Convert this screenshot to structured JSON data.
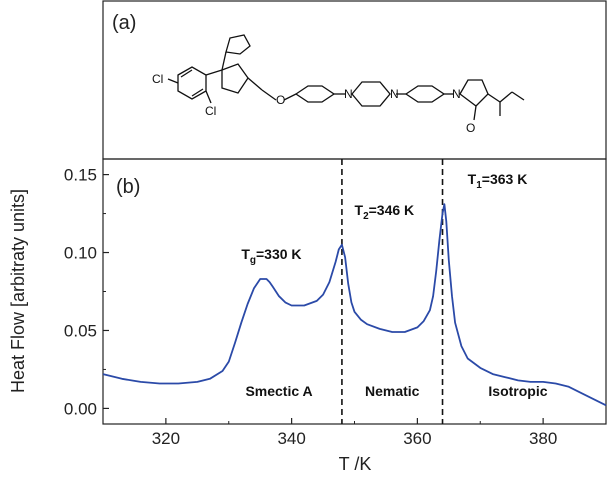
{
  "panel_a": {
    "label": "(a)",
    "atoms": {
      "cl1": "Cl",
      "cl2": "Cl",
      "n": "N",
      "o": "O"
    }
  },
  "chart_data": {
    "type": "line",
    "panel_label": "(b)",
    "xlabel": "T /K",
    "ylabel": "Heat Flow [arbitraty units]",
    "xlim": [
      310,
      390
    ],
    "ylim": [
      -0.01,
      0.16
    ],
    "xticks": [
      320,
      340,
      360,
      380
    ],
    "xtick_labels": [
      "320",
      "340",
      "360",
      "380"
    ],
    "yticks": [
      0.0,
      0.05,
      0.1,
      0.15
    ],
    "ytick_labels": [
      "0.00",
      "0.05",
      "0.10",
      "0.15"
    ],
    "grid": false,
    "series": [
      {
        "color": "#2b4aa8",
        "x": [
          310,
          313,
          316,
          319,
          322,
          325,
          327,
          329,
          330,
          331,
          332,
          333,
          334,
          335,
          336,
          336.5,
          337,
          338,
          339,
          340,
          342,
          344,
          345,
          346,
          347,
          347.5,
          348,
          348.5,
          349,
          349.5,
          350,
          351,
          352,
          354,
          356,
          358,
          360,
          361,
          362,
          362.5,
          363,
          363.5,
          364,
          364.3,
          364.6,
          365,
          365.5,
          366,
          367,
          368,
          370,
          372,
          374,
          376,
          378,
          380,
          382,
          384,
          386,
          388,
          390
        ],
        "y": [
          0.022,
          0.019,
          0.017,
          0.016,
          0.016,
          0.017,
          0.019,
          0.024,
          0.03,
          0.042,
          0.055,
          0.067,
          0.077,
          0.083,
          0.083,
          0.081,
          0.078,
          0.072,
          0.068,
          0.066,
          0.066,
          0.069,
          0.073,
          0.081,
          0.094,
          0.102,
          0.105,
          0.097,
          0.08,
          0.068,
          0.062,
          0.057,
          0.054,
          0.051,
          0.049,
          0.049,
          0.052,
          0.056,
          0.063,
          0.072,
          0.088,
          0.108,
          0.125,
          0.131,
          0.12,
          0.095,
          0.072,
          0.055,
          0.04,
          0.032,
          0.026,
          0.022,
          0.02,
          0.018,
          0.017,
          0.017,
          0.016,
          0.014,
          0.01,
          0.006,
          0.002
        ]
      }
    ],
    "vlines": [
      348,
      364
    ],
    "annotations": [
      {
        "main": "T",
        "sub": "g",
        "rest": "=330 K",
        "x": 332,
        "y": 0.096
      },
      {
        "main": "T",
        "sub": "2",
        "rest": "=346 K",
        "x": 350,
        "y": 0.124
      },
      {
        "main": "T",
        "sub": "1",
        "rest": "=363 K",
        "x": 368,
        "y": 0.144
      }
    ],
    "phase_labels": [
      {
        "text": "Smectic A",
        "x": 338
      },
      {
        "text": "Nematic",
        "x": 356
      },
      {
        "text": "Isotropic",
        "x": 376
      }
    ],
    "phase_label_y": 0.008
  }
}
